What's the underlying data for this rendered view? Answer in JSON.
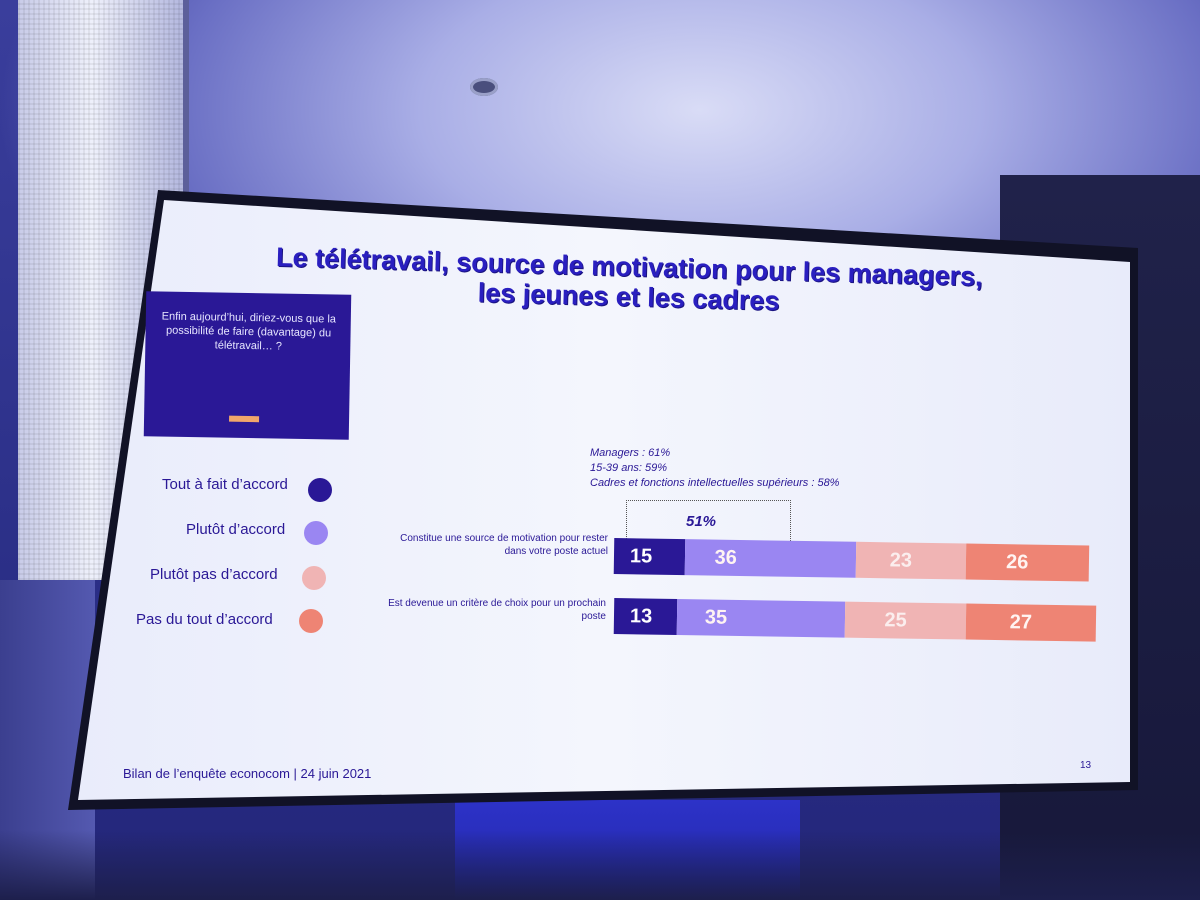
{
  "slide": {
    "title_line1": "Le télétravail, source de motivation pour les managers,",
    "title_line2": "les jeunes et les cadres",
    "question": "Enfin aujourd’hui, diriez-vous que la possibilité de faire (davantage) du télétravail… ?",
    "footer": "Bilan de l’enquête econocom | 24 juin 2021",
    "page_number": "13"
  },
  "legend": [
    {
      "label": "Tout à fait d’accord",
      "color": "#2a1896"
    },
    {
      "label": "Plutôt d’accord",
      "color": "#9a86f2"
    },
    {
      "label": "Plutôt pas d’accord",
      "color": "#f0b4b4"
    },
    {
      "label": "Pas du tout d’accord",
      "color": "#ee8474"
    }
  ],
  "annotations": [
    "Managers : 61%",
    "15-39 ans: 59%",
    "Cadres et fonctions intellectuelles supérieurs : 58%"
  ],
  "combined_label": "51%",
  "chart_data": {
    "type": "bar",
    "stacked": true,
    "orientation": "horizontal",
    "categories": [
      "Constitue une source de motivation pour rester dans votre poste actuel",
      "Est devenue un critère de choix pour un prochain poste"
    ],
    "series": [
      {
        "name": "Tout à fait d’accord",
        "values": [
          15,
          13
        ],
        "color": "#2a1896"
      },
      {
        "name": "Plutôt d’accord",
        "values": [
          36,
          35
        ],
        "color": "#9a86f2"
      },
      {
        "name": "Plutôt pas d’accord",
        "values": [
          23,
          25
        ],
        "color": "#f0b4b4"
      },
      {
        "name": "Pas du tout d’accord",
        "values": [
          26,
          27
        ],
        "color": "#ee8474"
      }
    ],
    "xlim": [
      0,
      100
    ]
  }
}
